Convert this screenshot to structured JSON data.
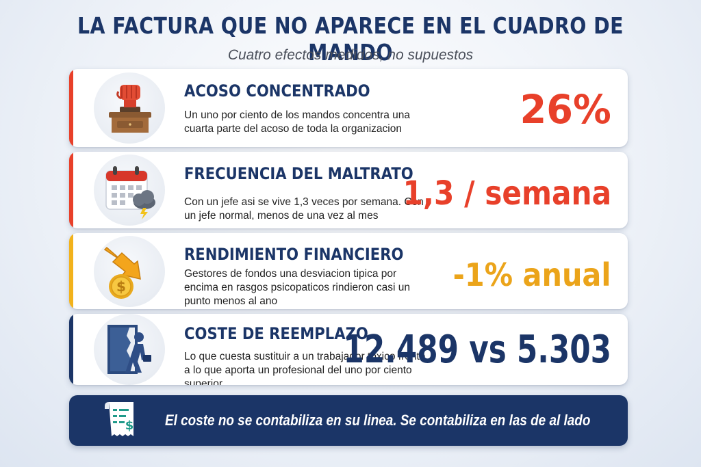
{
  "header": {
    "title": "LA FACTURA QUE NO APARECE EN EL CUADRO DE MANDO",
    "subtitle": "Cuatro efectos medidos, no supuestos"
  },
  "cards": [
    {
      "icon": "raised-fist-icon",
      "title": "ACOSO CONCENTRADO",
      "description": "Un uno por ciento de los mandos concentra una cuarta parte del acoso de toda la organizacion",
      "value": "26%",
      "accent_color": "#e8402a",
      "value_color": "#e8402a"
    },
    {
      "icon": "calendar-storm-icon",
      "title": "FRECUENCIA DEL MALTRATO",
      "description": "Con un jefe asi se vive 1,3 veces por semana. Con un jefe normal, menos de una vez al mes",
      "value": "1,3 / semana",
      "accent_color": "#e8402a",
      "value_color": "#e8402a"
    },
    {
      "icon": "coin-down-arrow-icon",
      "title": "RENDIMIENTO FINANCIERO",
      "description": "Gestores de fondos una desviacion tipica por encima en rasgos psicopaticos rindieron casi un punto menos al ano",
      "value": "-1% anual",
      "accent_color": "#f2b21b",
      "value_color": "#eba41a"
    },
    {
      "icon": "person-leaving-door-icon",
      "title": "COSTE DE REEMPLAZO",
      "description": "Lo que cuesta sustituir a un trabajador toxico frente a lo que aporta un profesional del uno por ciento superior",
      "value": "12.489 vs 5.303",
      "accent_color": "#1b3567",
      "value_color": "#1b3567"
    }
  ],
  "footer": {
    "icon": "receipt-dollar-icon",
    "text": "El coste no se contabiliza en su linea. Se contabiliza en las de al lado"
  },
  "colors": {
    "navy": "#1b3567",
    "red": "#e8402a",
    "orange": "#eba41a"
  }
}
